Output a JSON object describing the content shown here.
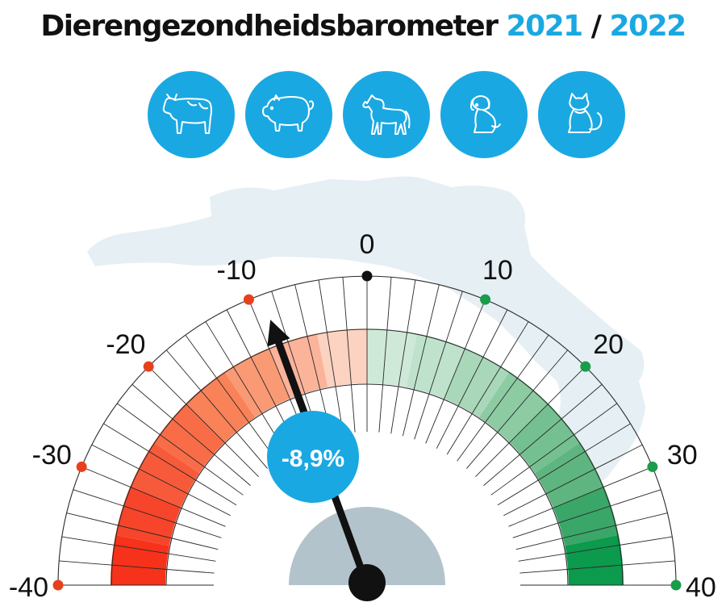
{
  "title": {
    "text": "Dierengezondheidsbarometer",
    "year1": "2021",
    "separator": "/",
    "year2": "2022"
  },
  "icons": [
    "cow-icon",
    "pig-icon",
    "horse-icon",
    "dog-icon",
    "cat-icon"
  ],
  "colors": {
    "accent": "#1aa8e2",
    "negative_dot": "#e8401c",
    "positive_dot": "#1a9c4a",
    "hub": "#b3c3cb",
    "map": "#e6eff4"
  },
  "chart_data": {
    "type": "gauge",
    "title": "Dierengezondheidsbarometer 2021 / 2022",
    "range": [
      -40,
      40
    ],
    "major_ticks": [
      -40,
      -30,
      -20,
      -10,
      0,
      10,
      20,
      30,
      40
    ],
    "tick_labels": [
      "-40",
      "-30",
      "-20",
      "-10",
      "0",
      "10",
      "20",
      "30",
      "40"
    ],
    "minor_step": 2,
    "value": -8.9,
    "value_label": "-8,9%",
    "bands": {
      "negative_colors": [
        "#f6321a",
        "#f6452a",
        "#f75a3a",
        "#f86c48",
        "#f98258",
        "#fa9a74",
        "#fbb39a",
        "#fcd2c0"
      ],
      "positive_colors": [
        "#cfe9d8",
        "#bfe2cc",
        "#a8d8b9",
        "#8dcba3",
        "#75c091",
        "#5fb57f",
        "#3aa668",
        "#0c9a4c"
      ]
    }
  }
}
